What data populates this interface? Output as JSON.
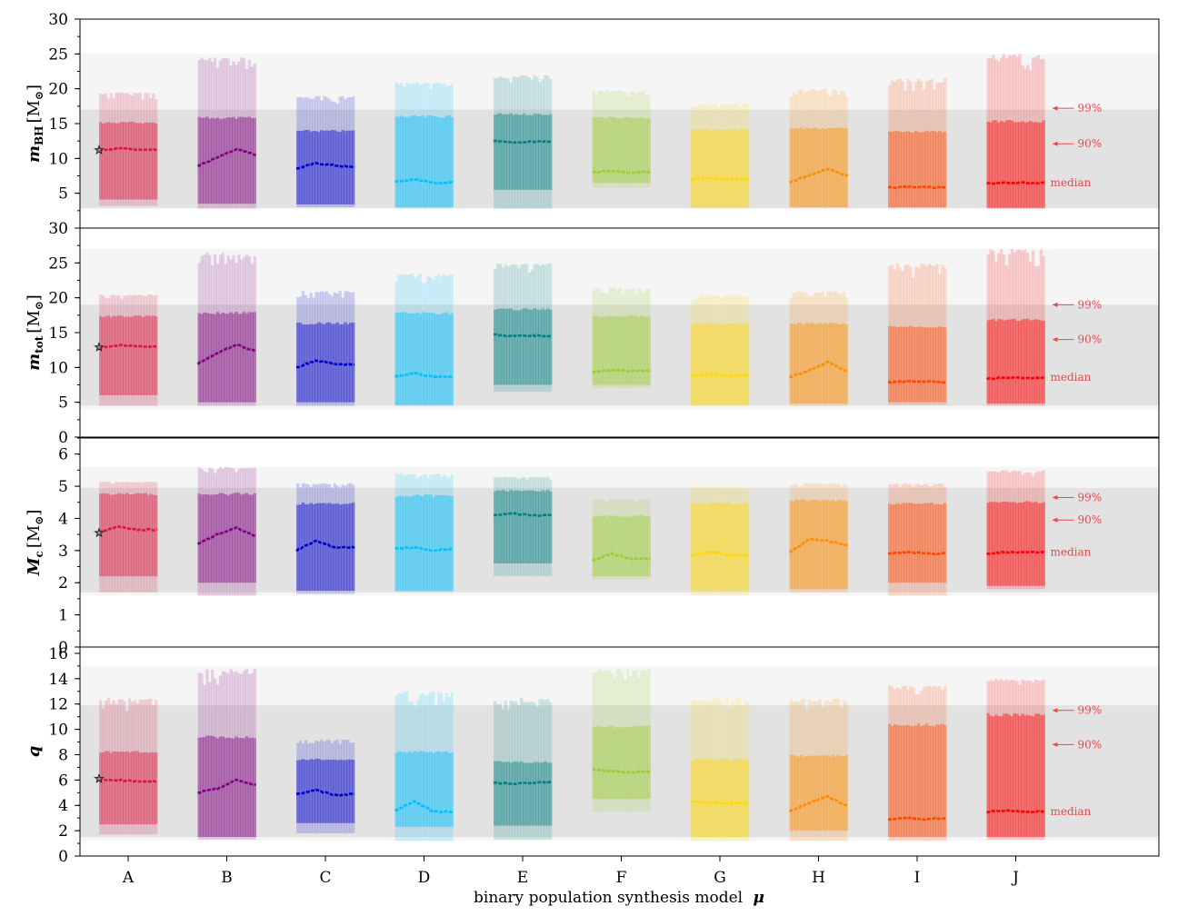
{
  "chart_data": {
    "type": "bar",
    "xlabel": "binary population synthesis model",
    "xlabel_symbol": "μ",
    "categories": [
      "A",
      "B",
      "C",
      "D",
      "E",
      "F",
      "G",
      "H",
      "I",
      "J"
    ],
    "colors": {
      "A": "#dc143c",
      "B": "#800080",
      "C": "#0000cd",
      "D": "#00bfff",
      "E": "#008080",
      "F": "#9acd32",
      "G": "#ffd700",
      "H": "#ff8c00",
      "I": "#ff4500",
      "J": "#ff0000"
    },
    "annotations": {
      "p99": "99%",
      "p90": "90%",
      "median": "median"
    },
    "panels": [
      {
        "ylabel_main": "m",
        "ylabel_sub": "BH",
        "ylabel_unit": "[M",
        "ylabel_unit_sub": "⊙",
        "ylabel_unit_close": "]",
        "ylim": [
          0,
          30
        ],
        "yticks": [
          "5",
          "10",
          "15",
          "20",
          "25",
          "30"
        ],
        "band90": [
          2.9,
          17.0
        ],
        "band99": [
          2.7,
          25.0
        ],
        "star": 11.2,
        "annot_y": {
          "p99": 17.2,
          "p90": 12.1,
          "median": 6.5
        },
        "series": [
          {
            "cat": "A",
            "median": [
              11.2,
              11.4,
              11.3,
              11.2
            ],
            "lo90": 4.1,
            "hi90": 15.3,
            "lo99": 3.2,
            "hi99": 19.5
          },
          {
            "cat": "B",
            "median": [
              8.9,
              10.1,
              11.3,
              10.5
            ],
            "lo90": 3.5,
            "hi90": 16.0,
            "lo99": 2.8,
            "hi99": 24.5
          },
          {
            "cat": "C",
            "median": [
              8.5,
              9.3,
              9.0,
              8.7
            ],
            "lo90": 3.4,
            "hi90": 14.1,
            "lo99": 3.0,
            "hi99": 19.0
          },
          {
            "cat": "D",
            "median": [
              6.6,
              7.0,
              6.5,
              6.6
            ],
            "lo90": 3.0,
            "hi90": 16.2,
            "lo99": 2.8,
            "hi99": 21.0
          },
          {
            "cat": "E",
            "median": [
              12.5,
              12.3,
              12.4,
              12.4
            ],
            "lo90": 5.5,
            "hi90": 16.5,
            "lo99": 2.8,
            "hi99": 22.0
          },
          {
            "cat": "F",
            "median": [
              8.0,
              8.2,
              8.0,
              8.1
            ],
            "lo90": 6.5,
            "hi90": 16.0,
            "lo99": 5.8,
            "hi99": 19.8
          },
          {
            "cat": "G",
            "median": [
              7.0,
              7.2,
              7.0,
              7.1
            ],
            "lo90": 3.0,
            "hi90": 14.3,
            "lo99": 2.8,
            "hi99": 18.0
          },
          {
            "cat": "H",
            "median": [
              6.5,
              7.6,
              8.5,
              7.5
            ],
            "lo90": 3.0,
            "hi90": 14.5,
            "lo99": 2.9,
            "hi99": 20.0
          },
          {
            "cat": "I",
            "median": [
              5.8,
              5.9,
              5.9,
              5.8
            ],
            "lo90": 3.0,
            "hi90": 14.0,
            "lo99": 2.8,
            "hi99": 21.5
          },
          {
            "cat": "J",
            "median": [
              6.4,
              6.5,
              6.5,
              6.5
            ],
            "lo90": 2.9,
            "hi90": 15.5,
            "lo99": 2.8,
            "hi99": 25.0
          }
        ]
      },
      {
        "ylabel_main": "m",
        "ylabel_sub": "tot",
        "ylabel_unit": "[M",
        "ylabel_unit_sub": "⊙",
        "ylabel_unit_close": "]",
        "ylim": [
          0,
          30
        ],
        "yticks": [
          "0",
          "5",
          "10",
          "15",
          "20",
          "25",
          "30"
        ],
        "band90": [
          4.5,
          19.0
        ],
        "band99": [
          4.0,
          27.0
        ],
        "star": 12.9,
        "annot_y": {
          "p99": 19.0,
          "p90": 14.0,
          "median": 8.6
        },
        "series": [
          {
            "cat": "A",
            "median": [
              12.9,
              13.2,
              13.0,
              13.0
            ],
            "lo90": 6.0,
            "hi90": 17.5,
            "lo99": 4.5,
            "hi99": 20.5
          },
          {
            "cat": "B",
            "median": [
              10.5,
              12.0,
              13.3,
              12.3
            ],
            "lo90": 5.0,
            "hi90": 18.0,
            "lo99": 4.5,
            "hi99": 26.5
          },
          {
            "cat": "C",
            "median": [
              10.0,
              11.0,
              10.5,
              10.4
            ],
            "lo90": 5.0,
            "hi90": 16.5,
            "lo99": 4.5,
            "hi99": 21.0
          },
          {
            "cat": "D",
            "median": [
              8.7,
              9.2,
              8.6,
              8.7
            ],
            "lo90": 4.6,
            "hi90": 18.0,
            "lo99": 4.5,
            "hi99": 23.5
          },
          {
            "cat": "E",
            "median": [
              14.7,
              14.5,
              14.6,
              14.5
            ],
            "lo90": 7.5,
            "hi90": 18.5,
            "lo99": 6.5,
            "hi99": 25.0
          },
          {
            "cat": "F",
            "median": [
              9.4,
              9.6,
              9.5,
              9.5
            ],
            "lo90": 7.5,
            "hi90": 17.5,
            "lo99": 7.0,
            "hi99": 21.5
          },
          {
            "cat": "G",
            "median": [
              8.8,
              9.0,
              8.8,
              8.9
            ],
            "lo90": 4.6,
            "hi90": 16.5,
            "lo99": 4.5,
            "hi99": 20.5
          },
          {
            "cat": "H",
            "median": [
              8.5,
              9.6,
              10.8,
              9.4
            ],
            "lo90": 4.8,
            "hi90": 16.5,
            "lo99": 4.5,
            "hi99": 21.0
          },
          {
            "cat": "I",
            "median": [
              7.9,
              8.0,
              8.0,
              7.9
            ],
            "lo90": 5.0,
            "hi90": 16.0,
            "lo99": 4.6,
            "hi99": 25.0
          },
          {
            "cat": "J",
            "median": [
              8.4,
              8.5,
              8.5,
              8.5
            ],
            "lo90": 4.8,
            "hi90": 17.0,
            "lo99": 4.5,
            "hi99": 27.0
          }
        ]
      },
      {
        "ylabel_main": "M",
        "ylabel_sub": "c",
        "ylabel_unit": "[M",
        "ylabel_unit_sub": "⊙",
        "ylabel_unit_close": "]",
        "ylim": [
          0,
          6.5
        ],
        "yticks": [
          "0",
          "1",
          "2",
          "3",
          "4",
          "5",
          "6"
        ],
        "band90": [
          1.7,
          4.95
        ],
        "band99": [
          1.6,
          5.6
        ],
        "star": 3.55,
        "annot_y": {
          "p99": 4.65,
          "p90": 3.95,
          "median": 2.95
        },
        "series": [
          {
            "cat": "A",
            "median": [
              3.55,
              3.75,
              3.65,
              3.65
            ],
            "lo90": 2.2,
            "hi90": 4.8,
            "lo99": 1.7,
            "hi99": 5.15
          },
          {
            "cat": "B",
            "median": [
              3.2,
              3.5,
              3.7,
              3.45
            ],
            "lo90": 2.0,
            "hi90": 4.8,
            "lo99": 1.6,
            "hi99": 5.6
          },
          {
            "cat": "C",
            "median": [
              3.0,
              3.3,
              3.1,
              3.1
            ],
            "lo90": 1.75,
            "hi90": 4.5,
            "lo99": 1.65,
            "hi99": 5.1
          },
          {
            "cat": "D",
            "median": [
              3.05,
              3.1,
              3.0,
              3.05
            ],
            "lo90": 1.75,
            "hi90": 4.75,
            "lo99": 1.7,
            "hi99": 5.4
          },
          {
            "cat": "E",
            "median": [
              4.1,
              4.15,
              4.1,
              4.1
            ],
            "lo90": 2.6,
            "hi90": 4.9,
            "lo99": 2.2,
            "hi99": 5.3
          },
          {
            "cat": "F",
            "median": [
              2.7,
              2.9,
              2.75,
              2.75
            ],
            "lo90": 2.2,
            "hi90": 4.1,
            "lo99": 2.1,
            "hi99": 4.6
          },
          {
            "cat": "G",
            "median": [
              2.85,
              2.95,
              2.85,
              2.85
            ],
            "lo90": 1.75,
            "hi90": 4.5,
            "lo99": 1.6,
            "hi99": 5.0
          },
          {
            "cat": "H",
            "median": [
              2.95,
              3.35,
              3.3,
              3.15
            ],
            "lo90": 1.8,
            "hi90": 4.6,
            "lo99": 1.7,
            "hi99": 5.1
          },
          {
            "cat": "I",
            "median": [
              2.9,
              2.95,
              2.9,
              2.9
            ],
            "lo90": 2.0,
            "hi90": 4.5,
            "lo99": 1.6,
            "hi99": 5.1
          },
          {
            "cat": "J",
            "median": [
              2.9,
              2.95,
              2.95,
              2.95
            ],
            "lo90": 1.9,
            "hi90": 4.55,
            "lo99": 1.8,
            "hi99": 5.5
          }
        ]
      },
      {
        "ylabel_main": "q",
        "ylim": [
          0,
          16.5
        ],
        "yticks": [
          "0",
          "2",
          "4",
          "6",
          "8",
          "10",
          "12",
          "14",
          "16"
        ],
        "band90": [
          1.5,
          11.9
        ],
        "band99": [
          1.2,
          15.0
        ],
        "star": 6.1,
        "annot_y": {
          "p99": 11.5,
          "p90": 8.8,
          "median": 3.5
        },
        "series": [
          {
            "cat": "A",
            "median": [
              6.0,
              6.0,
              5.9,
              5.9
            ],
            "lo90": 2.5,
            "hi90": 8.3,
            "lo99": 1.7,
            "hi99": 12.5
          },
          {
            "cat": "B",
            "median": [
              5.0,
              5.3,
              6.0,
              5.6
            ],
            "lo90": 1.5,
            "hi90": 9.5,
            "lo99": 1.3,
            "hi99": 14.8
          },
          {
            "cat": "C",
            "median": [
              4.9,
              5.2,
              4.8,
              4.9
            ],
            "lo90": 2.6,
            "hi90": 7.7,
            "lo99": 1.8,
            "hi99": 9.2
          },
          {
            "cat": "D",
            "median": [
              3.6,
              4.3,
              3.5,
              3.5
            ],
            "lo90": 2.3,
            "hi90": 8.3,
            "lo99": 1.2,
            "hi99": 13.0
          },
          {
            "cat": "E",
            "median": [
              5.8,
              5.7,
              5.8,
              5.8
            ],
            "lo90": 2.4,
            "hi90": 7.5,
            "lo99": 1.3,
            "hi99": 12.5
          },
          {
            "cat": "F",
            "median": [
              6.8,
              6.7,
              6.6,
              6.7
            ],
            "lo90": 4.5,
            "hi90": 10.3,
            "lo99": 3.5,
            "hi99": 14.8
          },
          {
            "cat": "G",
            "median": [
              4.3,
              4.2,
              4.2,
              4.2
            ],
            "lo90": 1.5,
            "hi90": 7.7,
            "lo99": 1.2,
            "hi99": 12.5
          },
          {
            "cat": "H",
            "median": [
              3.5,
              4.2,
              4.7,
              3.9
            ],
            "lo90": 2.0,
            "hi90": 8.0,
            "lo99": 1.2,
            "hi99": 12.5
          },
          {
            "cat": "I",
            "median": [
              2.9,
              3.0,
              2.9,
              3.0
            ],
            "lo90": 1.5,
            "hi90": 10.5,
            "lo99": 1.2,
            "hi99": 13.5
          },
          {
            "cat": "J",
            "median": [
              3.5,
              3.6,
              3.5,
              3.5
            ],
            "lo90": 1.5,
            "hi90": 11.3,
            "lo99": 1.3,
            "hi99": 14.0
          }
        ]
      }
    ]
  }
}
